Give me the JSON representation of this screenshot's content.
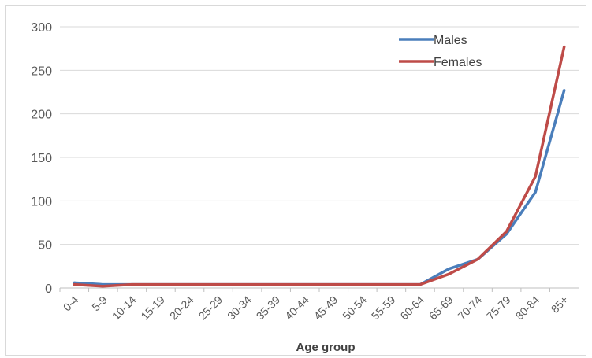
{
  "chart_data": {
    "type": "line",
    "title": "",
    "xlabel": "Age group",
    "ylabel": "",
    "categories": [
      "0-4",
      "5-9",
      "10-14",
      "15-19",
      "20-24",
      "25-29",
      "30-34",
      "35-39",
      "40-44",
      "45-49",
      "50-54",
      "55-59",
      "60-64",
      "65-69",
      "70-74",
      "75-79",
      "80-84",
      "85+"
    ],
    "ylim": [
      0,
      300
    ],
    "yticks": [
      "0",
      "50",
      "100",
      "150",
      "200",
      "250",
      "300"
    ],
    "grid": true,
    "legend_position": "top-right",
    "series": [
      {
        "name": "Males",
        "color": "#4a7ebb",
        "values": [
          6,
          4,
          4,
          4,
          4,
          4,
          4,
          4,
          4,
          4,
          4,
          4,
          4,
          22,
          33,
          62,
          110,
          227
        ]
      },
      {
        "name": "Females",
        "color": "#be4b48",
        "values": [
          4,
          2,
          4,
          4,
          4,
          4,
          4,
          4,
          4,
          4,
          4,
          4,
          4,
          16,
          33,
          65,
          128,
          277
        ]
      }
    ]
  }
}
